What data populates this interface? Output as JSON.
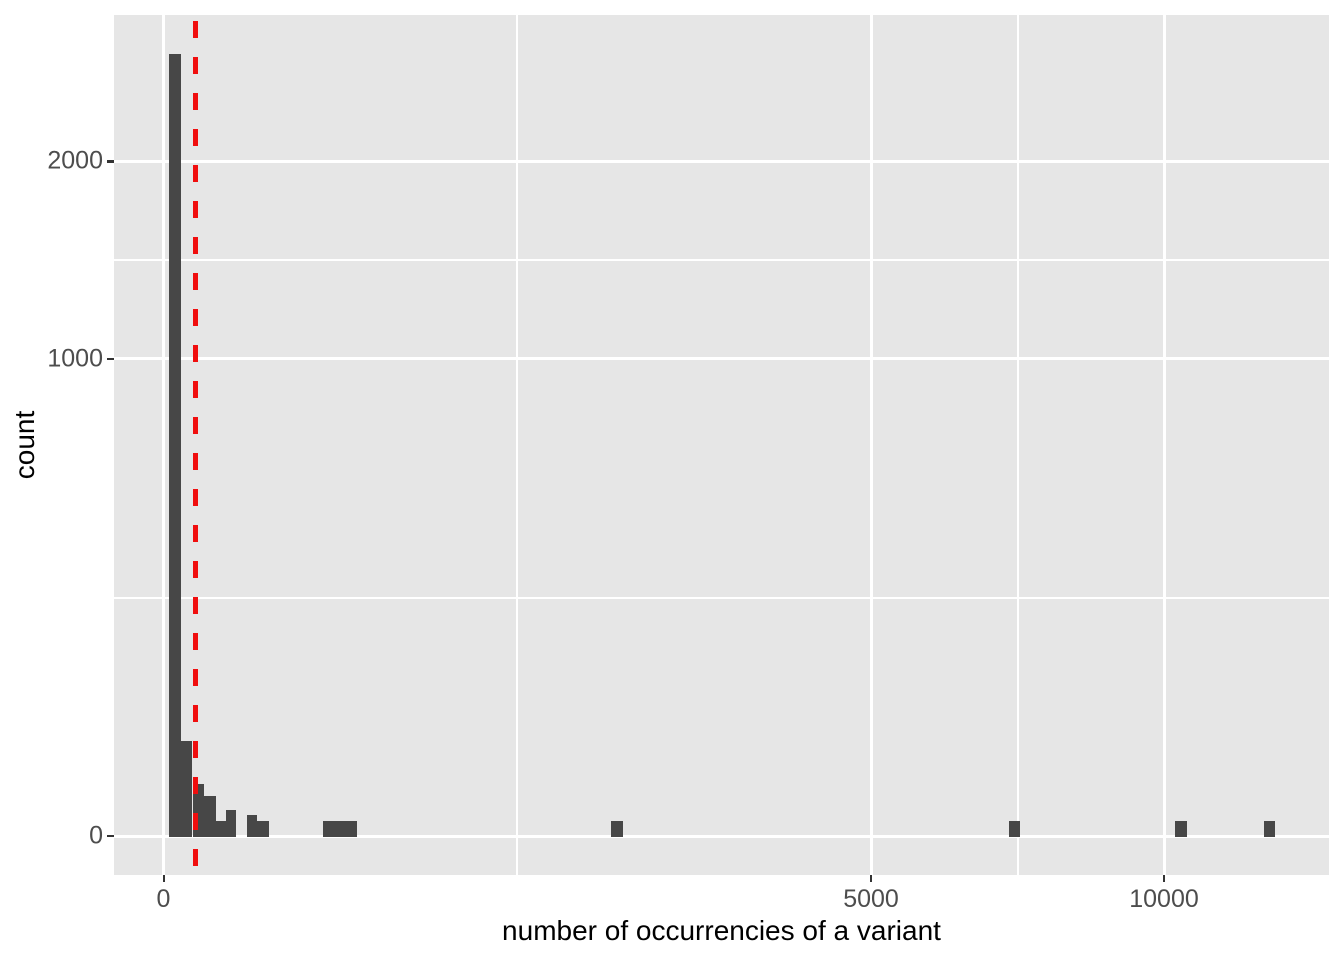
{
  "chart_data": {
    "type": "bar",
    "subtype": "histogram",
    "title": "",
    "xlabel": "number of occurrencies of a variant",
    "ylabel": "count",
    "x_scale": "sqrt",
    "y_scale": "sqrt",
    "grid": "on",
    "legend": "none",
    "xlim": [
      0,
      13500
    ],
    "ylim": [
      0,
      2960
    ],
    "x_ticks": [
      {
        "value": 0,
        "label": "0"
      },
      {
        "value": 5000,
        "label": "5000"
      },
      {
        "value": 10000,
        "label": "10000"
      }
    ],
    "y_ticks": [
      {
        "value": 0,
        "label": "0"
      },
      {
        "value": 1000,
        "label": "1000"
      },
      {
        "value": 2000,
        "label": "2000"
      }
    ],
    "bins": [
      {
        "x1": 0.3,
        "x2": 2.95,
        "count": 2690
      },
      {
        "x1": 2.95,
        "x2": 8.4,
        "count": 40
      },
      {
        "x1": 8.4,
        "x2": 16.5,
        "count": 12
      },
      {
        "x1": 16.5,
        "x2": 27.3,
        "count": 7
      },
      {
        "x1": 27.3,
        "x2": 38.5,
        "count": 1
      },
      {
        "x1": 38.5,
        "x2": 52.5,
        "count": 3
      },
      {
        "x1": 69.7,
        "x2": 87.4,
        "count": 2
      },
      {
        "x1": 87.4,
        "x2": 111,
        "count": 1
      },
      {
        "x1": 255,
        "x2": 373,
        "count": 1
      },
      {
        "x1": 1996,
        "x2": 2108,
        "count": 1
      },
      {
        "x1": 7142,
        "x2": 7334,
        "count": 1
      },
      {
        "x1": 10221,
        "x2": 10457,
        "count": 1
      },
      {
        "x1": 12091,
        "x2": 12348,
        "count": 1
      }
    ],
    "vline": {
      "x": 10.2,
      "style": "dashed",
      "color": "#F00E0E"
    },
    "colors": {
      "outer_bg": "#FFFFFF",
      "panel_bg": "#E6E6E6",
      "grid": "#FFFFFF",
      "bar_fill": "#474747",
      "tick_mark": "#333333",
      "tick_label": "#4D4D4D",
      "axis_title": "#000000"
    }
  }
}
